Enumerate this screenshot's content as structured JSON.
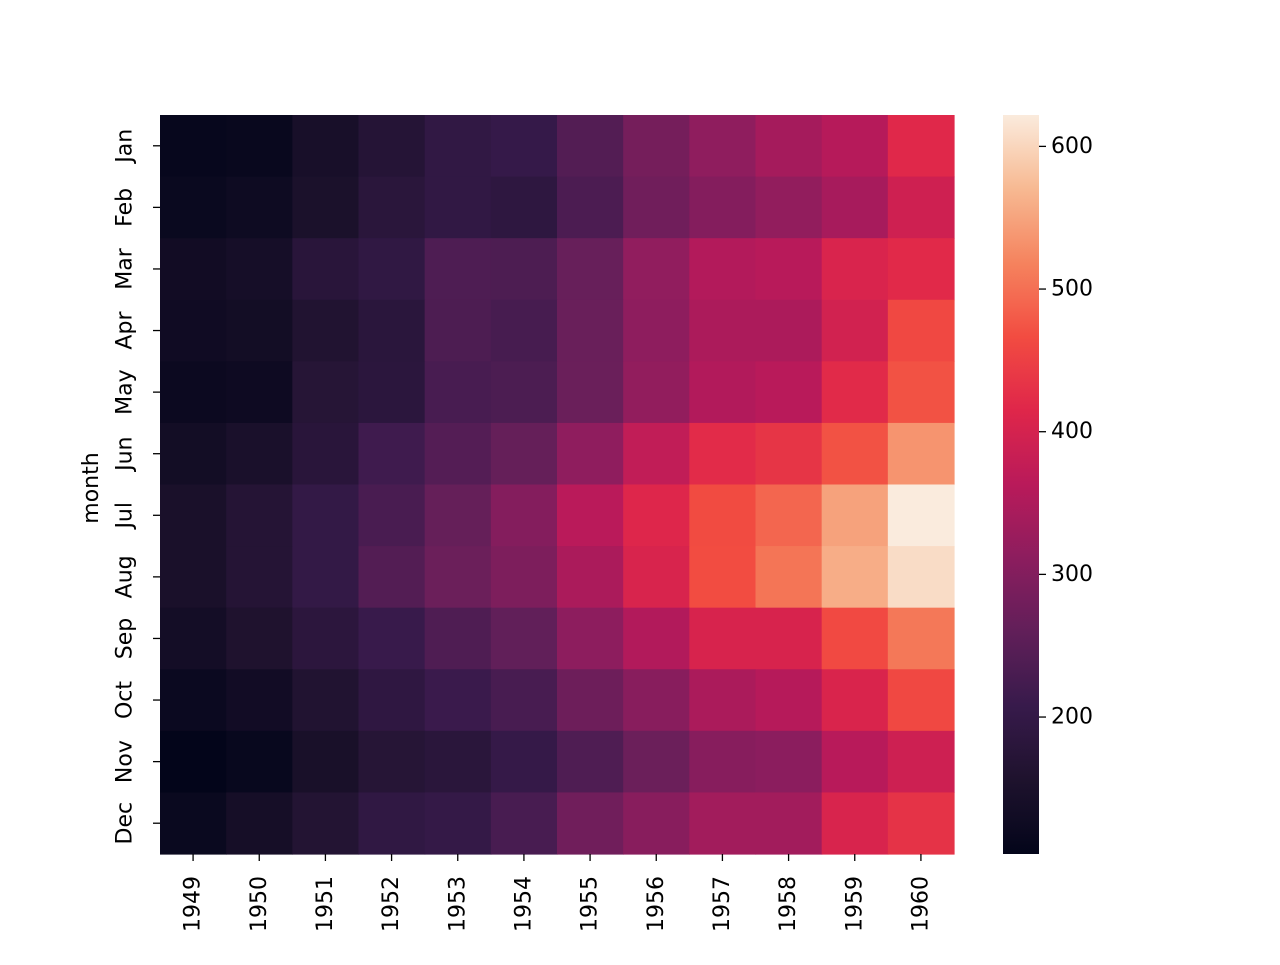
{
  "chart_data": {
    "type": "heatmap",
    "title": "",
    "xlabel": "",
    "ylabel": "month",
    "x_categories": [
      "1949",
      "1950",
      "1951",
      "1952",
      "1953",
      "1954",
      "1955",
      "1956",
      "1957",
      "1958",
      "1959",
      "1960"
    ],
    "y_categories": [
      "Jan",
      "Feb",
      "Mar",
      "Apr",
      "May",
      "Jun",
      "Jul",
      "Aug",
      "Sep",
      "Oct",
      "Nov",
      "Dec"
    ],
    "values": [
      [
        112,
        115,
        145,
        171,
        196,
        204,
        242,
        284,
        315,
        340,
        360,
        417
      ],
      [
        118,
        126,
        150,
        180,
        196,
        188,
        233,
        277,
        301,
        318,
        342,
        391
      ],
      [
        132,
        141,
        178,
        193,
        236,
        235,
        267,
        317,
        356,
        362,
        406,
        419
      ],
      [
        129,
        135,
        163,
        181,
        235,
        227,
        269,
        313,
        348,
        348,
        396,
        461
      ],
      [
        121,
        125,
        172,
        183,
        229,
        234,
        270,
        318,
        355,
        363,
        420,
        472
      ],
      [
        135,
        149,
        178,
        218,
        243,
        264,
        315,
        374,
        422,
        435,
        472,
        535
      ],
      [
        148,
        170,
        199,
        230,
        264,
        302,
        364,
        413,
        465,
        491,
        548,
        622
      ],
      [
        148,
        170,
        199,
        242,
        272,
        293,
        347,
        405,
        467,
        505,
        559,
        606
      ],
      [
        136,
        158,
        184,
        209,
        237,
        259,
        312,
        355,
        404,
        404,
        463,
        508
      ],
      [
        119,
        133,
        162,
        191,
        211,
        229,
        274,
        306,
        347,
        359,
        407,
        461
      ],
      [
        104,
        114,
        146,
        172,
        180,
        203,
        237,
        271,
        305,
        310,
        362,
        390
      ],
      [
        118,
        140,
        166,
        194,
        201,
        229,
        278,
        306,
        336,
        337,
        405,
        432
      ]
    ],
    "colorbar": {
      "min": 104,
      "max": 622,
      "ticks": [
        200,
        300,
        400,
        500,
        600
      ],
      "tick_labels": [
        "200",
        "300",
        "400",
        "500",
        "600"
      ],
      "colormap": "rocket"
    },
    "legend": "colorbar-right",
    "grid": false
  }
}
